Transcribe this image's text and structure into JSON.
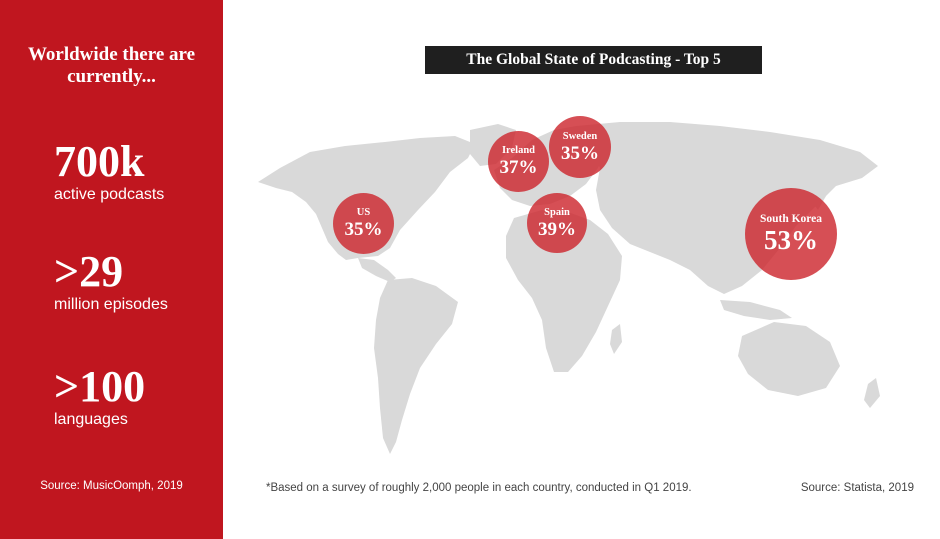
{
  "sidebar": {
    "heading_line1": "Worldwide there are",
    "heading_line2": "currently...",
    "stats": [
      {
        "value": "700k",
        "label": "active podcasts"
      },
      {
        "value": ">29",
        "label": "million episodes"
      },
      {
        "value": ">100",
        "label": "languages"
      }
    ],
    "source": "Source: MusicOomph, 2019"
  },
  "title": "The Global State of Podcasting - Top 5",
  "countries": [
    {
      "name": "US",
      "percent": "35%"
    },
    {
      "name": "Ireland",
      "percent": "37%"
    },
    {
      "name": "Sweden",
      "percent": "35%"
    },
    {
      "name": "Spain",
      "percent": "39%"
    },
    {
      "name": "South Korea",
      "percent": "53%"
    }
  ],
  "footnote": "*Based on a survey of roughly 2,000 people in each country, conducted in Q1 2019.",
  "map_source": "Source: Statista, 2019",
  "colors": {
    "sidebar": "#c0161f",
    "bubble": "#cd2830",
    "land": "#d9d9d9",
    "title_bg": "#1f1f1f"
  }
}
